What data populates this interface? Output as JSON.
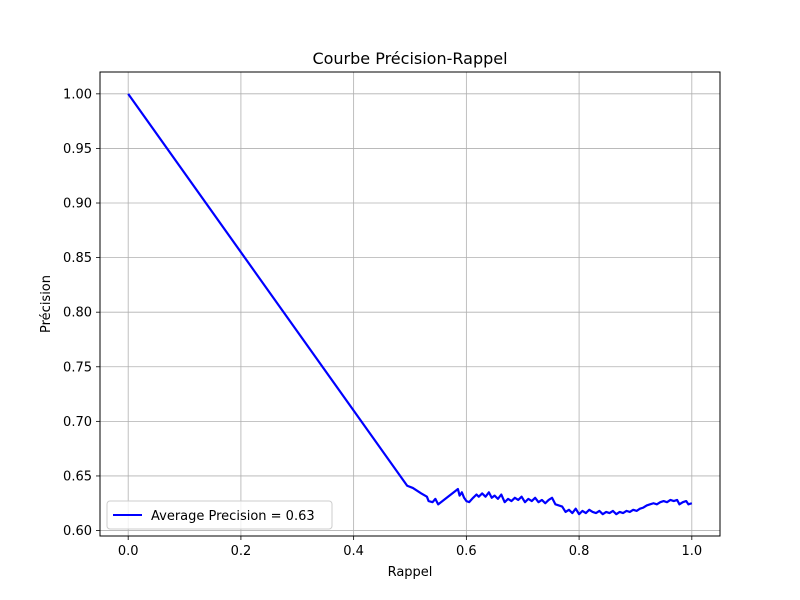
{
  "chart_data": {
    "type": "line",
    "title": "Courbe Précision-Rappel",
    "xlabel": "Rappel",
    "ylabel": "Précision",
    "xlim": [
      -0.05,
      1.05
    ],
    "ylim": [
      0.595,
      1.02
    ],
    "xticks": [
      0.0,
      0.2,
      0.4,
      0.6,
      0.8,
      1.0
    ],
    "xtick_labels": [
      "0.0",
      "0.2",
      "0.4",
      "0.6",
      "0.8",
      "1.0"
    ],
    "yticks": [
      0.6,
      0.65,
      0.7,
      0.75,
      0.8,
      0.85,
      0.9,
      0.95,
      1.0
    ],
    "ytick_labels": [
      "0.60",
      "0.65",
      "0.70",
      "0.75",
      "0.80",
      "0.85",
      "0.90",
      "0.95",
      "1.00"
    ],
    "grid": true,
    "legend_position": "lower-left",
    "series": [
      {
        "name": "Average Precision = 0.63",
        "color": "#0000ff",
        "points": [
          [
            0.0,
            1.0
          ],
          [
            0.495,
            0.641
          ],
          [
            0.505,
            0.639
          ],
          [
            0.52,
            0.634
          ],
          [
            0.53,
            0.631
          ],
          [
            0.533,
            0.627
          ],
          [
            0.54,
            0.626
          ],
          [
            0.545,
            0.629
          ],
          [
            0.55,
            0.624
          ],
          [
            0.56,
            0.628
          ],
          [
            0.57,
            0.632
          ],
          [
            0.58,
            0.636
          ],
          [
            0.585,
            0.638
          ],
          [
            0.588,
            0.632
          ],
          [
            0.592,
            0.635
          ],
          [
            0.596,
            0.63
          ],
          [
            0.6,
            0.627
          ],
          [
            0.605,
            0.626
          ],
          [
            0.612,
            0.63
          ],
          [
            0.618,
            0.633
          ],
          [
            0.622,
            0.631
          ],
          [
            0.628,
            0.634
          ],
          [
            0.634,
            0.631
          ],
          [
            0.64,
            0.635
          ],
          [
            0.645,
            0.63
          ],
          [
            0.65,
            0.632
          ],
          [
            0.656,
            0.629
          ],
          [
            0.662,
            0.633
          ],
          [
            0.668,
            0.626
          ],
          [
            0.674,
            0.629
          ],
          [
            0.68,
            0.627
          ],
          [
            0.686,
            0.63
          ],
          [
            0.692,
            0.628
          ],
          [
            0.698,
            0.631
          ],
          [
            0.704,
            0.626
          ],
          [
            0.71,
            0.629
          ],
          [
            0.716,
            0.627
          ],
          [
            0.722,
            0.63
          ],
          [
            0.728,
            0.626
          ],
          [
            0.734,
            0.628
          ],
          [
            0.74,
            0.625
          ],
          [
            0.746,
            0.628
          ],
          [
            0.752,
            0.63
          ],
          [
            0.758,
            0.624
          ],
          [
            0.764,
            0.623
          ],
          [
            0.77,
            0.622
          ],
          [
            0.776,
            0.617
          ],
          [
            0.782,
            0.619
          ],
          [
            0.788,
            0.616
          ],
          [
            0.794,
            0.62
          ],
          [
            0.8,
            0.615
          ],
          [
            0.806,
            0.618
          ],
          [
            0.812,
            0.616
          ],
          [
            0.818,
            0.619
          ],
          [
            0.824,
            0.617
          ],
          [
            0.83,
            0.616
          ],
          [
            0.836,
            0.618
          ],
          [
            0.842,
            0.615
          ],
          [
            0.848,
            0.617
          ],
          [
            0.854,
            0.616
          ],
          [
            0.86,
            0.618
          ],
          [
            0.866,
            0.615
          ],
          [
            0.872,
            0.617
          ],
          [
            0.878,
            0.616
          ],
          [
            0.884,
            0.618
          ],
          [
            0.89,
            0.617
          ],
          [
            0.896,
            0.619
          ],
          [
            0.902,
            0.618
          ],
          [
            0.908,
            0.62
          ],
          [
            0.914,
            0.621
          ],
          [
            0.92,
            0.623
          ],
          [
            0.926,
            0.624
          ],
          [
            0.932,
            0.625
          ],
          [
            0.938,
            0.624
          ],
          [
            0.944,
            0.626
          ],
          [
            0.95,
            0.627
          ],
          [
            0.956,
            0.626
          ],
          [
            0.962,
            0.628
          ],
          [
            0.968,
            0.627
          ],
          [
            0.974,
            0.628
          ],
          [
            0.978,
            0.624
          ],
          [
            0.984,
            0.626
          ],
          [
            0.99,
            0.627
          ],
          [
            0.994,
            0.624
          ],
          [
            1.0,
            0.625
          ]
        ]
      }
    ]
  }
}
